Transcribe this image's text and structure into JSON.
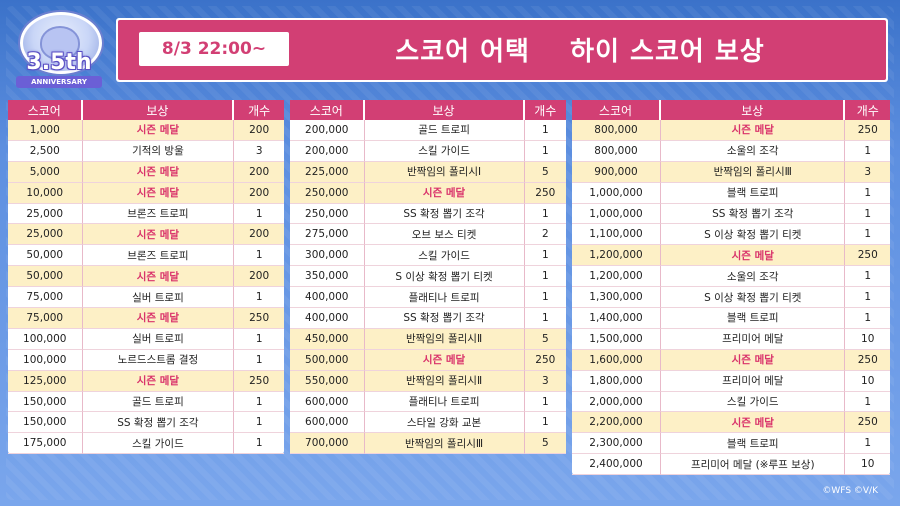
{
  "logo": {
    "number": "3.5th",
    "ribbon": "ANNIVERSARY"
  },
  "header": {
    "date": "8/3 22:00~",
    "title": "스코어 어택    하이 스코어 보상"
  },
  "columns": {
    "score": "스코어",
    "reward": "보상",
    "count": "개수"
  },
  "tables": [
    [
      {
        "score": "1,000",
        "reward": "시즌 메달",
        "count": "200",
        "hl": true
      },
      {
        "score": "2,500",
        "reward": "기적의 방울",
        "count": "3",
        "hl": false
      },
      {
        "score": "5,000",
        "reward": "시즌 메달",
        "count": "200",
        "hl": true
      },
      {
        "score": "10,000",
        "reward": "시즌 메달",
        "count": "200",
        "hl": true
      },
      {
        "score": "25,000",
        "reward": "브론즈 트로피",
        "count": "1",
        "hl": false
      },
      {
        "score": "25,000",
        "reward": "시즌 메달",
        "count": "200",
        "hl": true
      },
      {
        "score": "50,000",
        "reward": "브론즈 트로피",
        "count": "1",
        "hl": false
      },
      {
        "score": "50,000",
        "reward": "시즌 메달",
        "count": "200",
        "hl": true
      },
      {
        "score": "75,000",
        "reward": "실버 트로피",
        "count": "1",
        "hl": false
      },
      {
        "score": "75,000",
        "reward": "시즌 메달",
        "count": "250",
        "hl": true
      },
      {
        "score": "100,000",
        "reward": "실버 트로피",
        "count": "1",
        "hl": false
      },
      {
        "score": "100,000",
        "reward": "노르드스트롬 결정",
        "count": "1",
        "hl": false
      },
      {
        "score": "125,000",
        "reward": "시즌 메달",
        "count": "250",
        "hl": true
      },
      {
        "score": "150,000",
        "reward": "골드 트로피",
        "count": "1",
        "hl": false
      },
      {
        "score": "150,000",
        "reward": "SS 확정 뽑기 조각",
        "count": "1",
        "hl": false
      },
      {
        "score": "175,000",
        "reward": "스킬 가이드",
        "count": "1",
        "hl": false
      }
    ],
    [
      {
        "score": "200,000",
        "reward": "골드 트로피",
        "count": "1",
        "hl": false
      },
      {
        "score": "200,000",
        "reward": "스킬 가이드",
        "count": "1",
        "hl": false
      },
      {
        "score": "225,000",
        "reward": "반짝임의 폴리시Ⅰ",
        "count": "5",
        "hl": true,
        "plain": true
      },
      {
        "score": "250,000",
        "reward": "시즌 메달",
        "count": "250",
        "hl": true
      },
      {
        "score": "250,000",
        "reward": "SS 확정 뽑기 조각",
        "count": "1",
        "hl": false
      },
      {
        "score": "275,000",
        "reward": "오브 보스 티켓",
        "count": "2",
        "hl": false
      },
      {
        "score": "300,000",
        "reward": "스킬 가이드",
        "count": "1",
        "hl": false
      },
      {
        "score": "350,000",
        "reward": "S 이상 확정 뽑기 티켓",
        "count": "1",
        "hl": false
      },
      {
        "score": "400,000",
        "reward": "플래티나 트로피",
        "count": "1",
        "hl": false
      },
      {
        "score": "400,000",
        "reward": "SS 확정 뽑기 조각",
        "count": "1",
        "hl": false
      },
      {
        "score": "450,000",
        "reward": "반짝임의 폴리시Ⅱ",
        "count": "5",
        "hl": true,
        "plain": true
      },
      {
        "score": "500,000",
        "reward": "시즌 메달",
        "count": "250",
        "hl": true
      },
      {
        "score": "550,000",
        "reward": "반짝임의 폴리시Ⅱ",
        "count": "3",
        "hl": true,
        "plain": true
      },
      {
        "score": "600,000",
        "reward": "플래티나 트로피",
        "count": "1",
        "hl": false
      },
      {
        "score": "600,000",
        "reward": "스타일 강화 교본",
        "count": "1",
        "hl": false
      },
      {
        "score": "700,000",
        "reward": "반짝임의 폴리시Ⅲ",
        "count": "5",
        "hl": true,
        "plain": true
      }
    ],
    [
      {
        "score": "800,000",
        "reward": "시즌 메달",
        "count": "250",
        "hl": true
      },
      {
        "score": "800,000",
        "reward": "소울의 조각",
        "count": "1",
        "hl": false
      },
      {
        "score": "900,000",
        "reward": "반짝임의 폴리시Ⅲ",
        "count": "3",
        "hl": true,
        "plain": true
      },
      {
        "score": "1,000,000",
        "reward": "블랙 트로피",
        "count": "1",
        "hl": false
      },
      {
        "score": "1,000,000",
        "reward": "SS 확정 뽑기 조각",
        "count": "1",
        "hl": false
      },
      {
        "score": "1,100,000",
        "reward": "S 이상 확정 뽑기 티켓",
        "count": "1",
        "hl": false
      },
      {
        "score": "1,200,000",
        "reward": "시즌 메달",
        "count": "250",
        "hl": true
      },
      {
        "score": "1,200,000",
        "reward": "소울의 조각",
        "count": "1",
        "hl": false
      },
      {
        "score": "1,300,000",
        "reward": "S 이상 확정 뽑기 티켓",
        "count": "1",
        "hl": false
      },
      {
        "score": "1,400,000",
        "reward": "블랙 트로피",
        "count": "1",
        "hl": false
      },
      {
        "score": "1,500,000",
        "reward": "프리미어 메달",
        "count": "10",
        "hl": false
      },
      {
        "score": "1,600,000",
        "reward": "시즌 메달",
        "count": "250",
        "hl": true
      },
      {
        "score": "1,800,000",
        "reward": "프리미어 메달",
        "count": "10",
        "hl": false
      },
      {
        "score": "2,000,000",
        "reward": "스킬 가이드",
        "count": "1",
        "hl": false
      },
      {
        "score": "2,200,000",
        "reward": "시즌 메달",
        "count": "250",
        "hl": true
      },
      {
        "score": "2,300,000",
        "reward": "블랙 트로피",
        "count": "1",
        "hl": false
      },
      {
        "score": "2,400,000",
        "reward": "프리미어 메달 (※루프 보상)",
        "count": "10",
        "hl": false
      }
    ]
  ],
  "copyright": "©WFS ©V/K"
}
